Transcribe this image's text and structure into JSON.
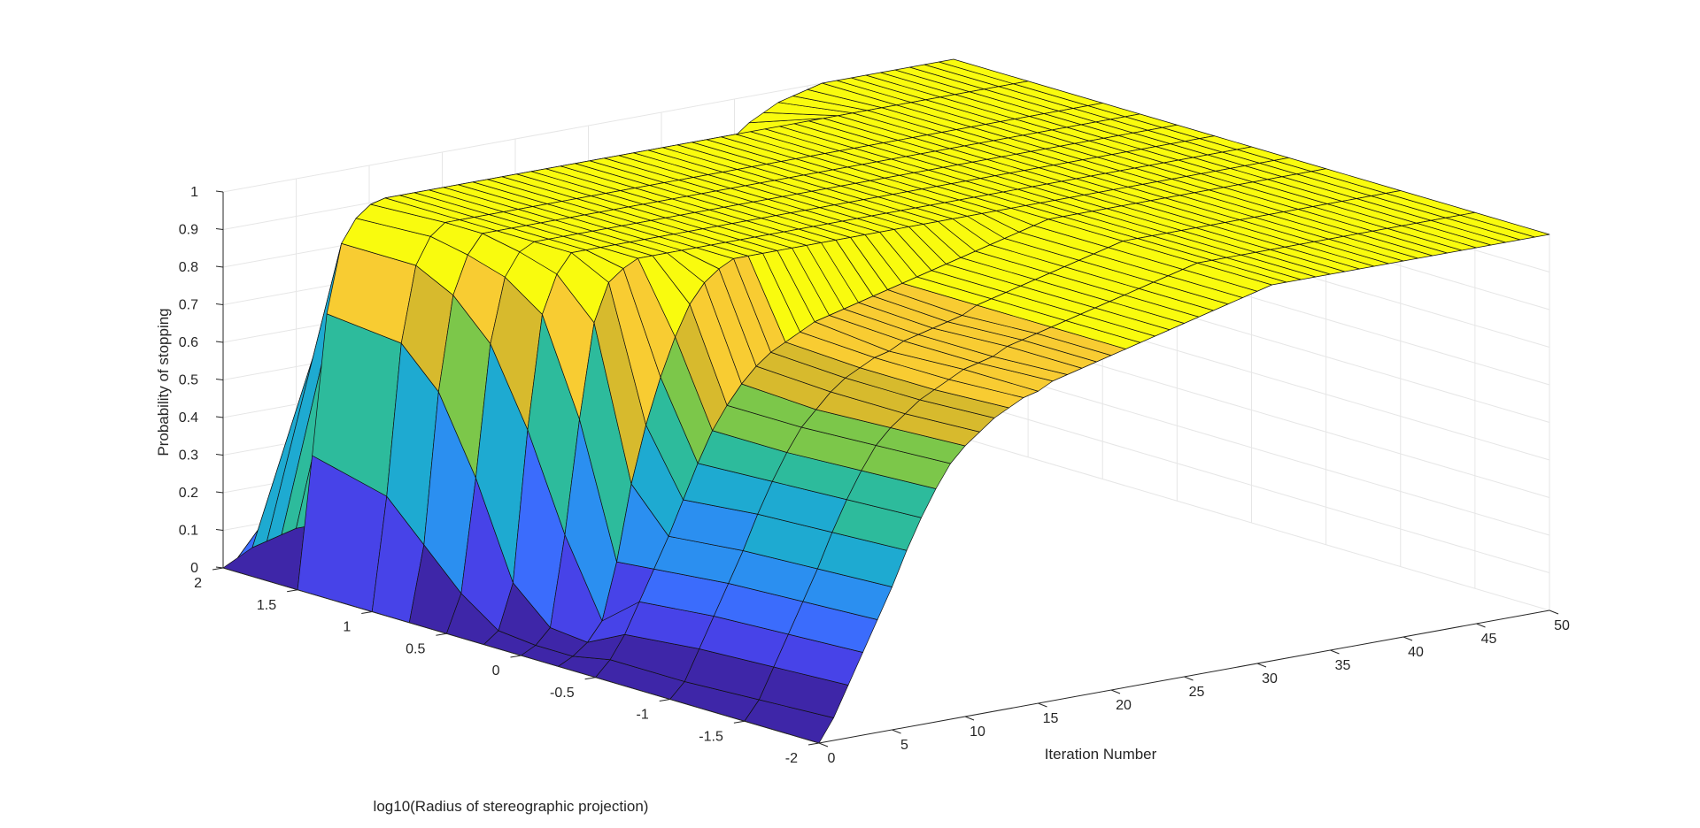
{
  "chart_data": {
    "type": "surface",
    "title": "",
    "xlabel": "Iteration Number",
    "ylabel": "log10(Radius of stereographic projection)",
    "zlabel": "Probability of stopping",
    "xlim": [
      0,
      50
    ],
    "ylim": [
      -2,
      2
    ],
    "zlim": [
      0,
      1
    ],
    "x_ticks": [
      "0",
      "5",
      "10",
      "15",
      "20",
      "25",
      "30",
      "35",
      "40",
      "45",
      "50"
    ],
    "y_ticks": [
      "-2",
      "-1.5",
      "-1",
      "-0.5",
      "0",
      "0.5",
      "1",
      "1.5",
      "2"
    ],
    "z_ticks": [
      "0",
      "0.1",
      "0.2",
      "0.3",
      "0.4",
      "0.5",
      "0.6",
      "0.7",
      "0.8",
      "0.9",
      "1"
    ],
    "grid": true,
    "colormap": "parula",
    "colors": [
      "#3e26a8",
      "#4743e8",
      "#3b6cfc",
      "#2b8ff0",
      "#1eaad1",
      "#2dbb9c",
      "#7cc74a",
      "#d7ba2d",
      "#f8cc32",
      "#f9fb0e"
    ],
    "y_grid": [
      -2,
      -1.5,
      -1,
      -0.5,
      -0.25,
      0,
      0.25,
      0.5,
      0.75,
      1,
      1.5,
      2
    ],
    "x_grid": [
      0,
      1,
      2,
      3,
      4,
      5,
      6,
      7,
      8,
      9,
      10,
      11,
      12,
      13,
      14,
      15,
      16,
      17,
      18,
      19,
      20,
      21,
      22,
      23,
      24,
      25,
      26,
      27,
      28,
      29,
      30,
      31,
      32,
      33,
      34,
      35,
      36,
      37,
      38,
      39,
      40,
      41,
      42,
      43,
      44,
      45,
      46,
      47,
      48,
      49,
      50
    ],
    "z_values_rows_by_y": [
      [
        0,
        0.06,
        0.14,
        0.22,
        0.3,
        0.38,
        0.47,
        0.55,
        0.62,
        0.68,
        0.72,
        0.75,
        0.78,
        0.8,
        0.82,
        0.83,
        0.85,
        0.86,
        0.87,
        0.88,
        0.89,
        0.9,
        0.91,
        0.92,
        0.93,
        0.94,
        0.95,
        0.96,
        0.97,
        0.98,
        0.99,
        1,
        1,
        1,
        1,
        1,
        1,
        1,
        1,
        1,
        1,
        1,
        1,
        1,
        1,
        1,
        1,
        1,
        1,
        1,
        1
      ],
      [
        0,
        0.05,
        0.13,
        0.21,
        0.29,
        0.37,
        0.46,
        0.54,
        0.61,
        0.67,
        0.71,
        0.74,
        0.77,
        0.79,
        0.81,
        0.83,
        0.84,
        0.85,
        0.87,
        0.88,
        0.89,
        0.9,
        0.91,
        0.92,
        0.93,
        0.94,
        0.95,
        0.96,
        0.97,
        0.98,
        0.99,
        1,
        1,
        1,
        1,
        1,
        1,
        1,
        1,
        1,
        1,
        1,
        1,
        1,
        1,
        1,
        1,
        1,
        1,
        1,
        1
      ],
      [
        0,
        0.04,
        0.12,
        0.2,
        0.28,
        0.36,
        0.45,
        0.53,
        0.6,
        0.66,
        0.7,
        0.74,
        0.77,
        0.79,
        0.81,
        0.82,
        0.84,
        0.85,
        0.86,
        0.87,
        0.88,
        0.9,
        0.91,
        0.92,
        0.93,
        0.94,
        0.95,
        0.96,
        0.97,
        0.98,
        0.99,
        1,
        1,
        1,
        1,
        1,
        1,
        1,
        1,
        1,
        1,
        1,
        1,
        1,
        1,
        1,
        1,
        1,
        1,
        1,
        1
      ],
      [
        0,
        0.04,
        0.1,
        0.18,
        0.26,
        0.34,
        0.43,
        0.52,
        0.6,
        0.66,
        0.71,
        0.75,
        0.78,
        0.8,
        0.82,
        0.84,
        0.85,
        0.86,
        0.87,
        0.88,
        0.89,
        0.9,
        0.91,
        0.92,
        0.93,
        0.94,
        0.95,
        0.96,
        0.97,
        0.98,
        0.99,
        1,
        1,
        1,
        1,
        1,
        1,
        1,
        1,
        1,
        1,
        1,
        1,
        1,
        1,
        1,
        1,
        1,
        1,
        1,
        1
      ],
      [
        0,
        0.02,
        0.05,
        0.1,
        0.25,
        0.45,
        0.6,
        0.72,
        0.82,
        0.9,
        0.95,
        0.98,
        1,
        1,
        1,
        1,
        1,
        1,
        1,
        1,
        1,
        1,
        1,
        1,
        1,
        1,
        1,
        1,
        1,
        1,
        1,
        1,
        1,
        1,
        1,
        1,
        1,
        1,
        1,
        1,
        1,
        1,
        1,
        1,
        1,
        1,
        1,
        1,
        1,
        1,
        1
      ],
      [
        0,
        0.02,
        0.06,
        0.3,
        0.6,
        0.85,
        0.95,
        0.98,
        1,
        1,
        1,
        1,
        1,
        1,
        1,
        1,
        1,
        1,
        1,
        1,
        1,
        1,
        1,
        1,
        1,
        1,
        1,
        1,
        1,
        1,
        1,
        1,
        1,
        1,
        1,
        1,
        1,
        1,
        1,
        1,
        1,
        1,
        1,
        1,
        1,
        1,
        1,
        1,
        1,
        1,
        1
      ],
      [
        0,
        0.03,
        0.15,
        0.55,
        0.85,
        0.95,
        1,
        1,
        1,
        1,
        1,
        1,
        1,
        1,
        1,
        1,
        1,
        1,
        1,
        1,
        1,
        1,
        1,
        1,
        1,
        1,
        1,
        1,
        1,
        1,
        1,
        1,
        1,
        1,
        1,
        1,
        1,
        1,
        1,
        1,
        1,
        1,
        1,
        1,
        1,
        1,
        1,
        1,
        1,
        1,
        1
      ],
      [
        0,
        0.1,
        0.4,
        0.75,
        0.92,
        0.98,
        1,
        1,
        1,
        1,
        1,
        1,
        1,
        1,
        1,
        1,
        1,
        1,
        1,
        1,
        1,
        1,
        1,
        1,
        1,
        1,
        1,
        1,
        1,
        1,
        1,
        1,
        1,
        1,
        1,
        1,
        1,
        1,
        1,
        1,
        1,
        1,
        1,
        1,
        1,
        1,
        1,
        1,
        1,
        1,
        1
      ],
      [
        0,
        0.2,
        0.6,
        0.85,
        0.95,
        1,
        1,
        1,
        1,
        1,
        1,
        1,
        1,
        1,
        1,
        1,
        1,
        1,
        1,
        1,
        1,
        1,
        1,
        1,
        1,
        1,
        1,
        1,
        1,
        1,
        1,
        1,
        1,
        1,
        1,
        1,
        1,
        1,
        1,
        1,
        1,
        1,
        1,
        1,
        1,
        1,
        1,
        1,
        1,
        1,
        1
      ],
      [
        0,
        0.3,
        0.7,
        0.9,
        0.97,
        1,
        1,
        1,
        1,
        1,
        1,
        1,
        1,
        1,
        1,
        1,
        1,
        1,
        1,
        1,
        1,
        1,
        1,
        1,
        1,
        1,
        1,
        1,
        1,
        1,
        1,
        1,
        1,
        1,
        1,
        1,
        1,
        1,
        1,
        1,
        1,
        1,
        1,
        1,
        1,
        1,
        1,
        1,
        1,
        1,
        1
      ],
      [
        0,
        0.35,
        0.72,
        0.9,
        0.96,
        0.99,
        1,
        1,
        1,
        1,
        1,
        1,
        1,
        1,
        1,
        1,
        1,
        1,
        1,
        1,
        1,
        1,
        1,
        1,
        1,
        1,
        1,
        1,
        1,
        1,
        1,
        1,
        1,
        1,
        1,
        1,
        1,
        1,
        1,
        1,
        1,
        1,
        1,
        1,
        1,
        1,
        1,
        1,
        1,
        1,
        1
      ],
      [
        0,
        0.02,
        0.04,
        0.05,
        0.06,
        0.07,
        0.07,
        0.08,
        0.08,
        0.09,
        0.09,
        0.1,
        0.1,
        0.11,
        0.11,
        0.12,
        0.12,
        0.13,
        0.13,
        0.14,
        0.14,
        0.15,
        0.16,
        0.17,
        0.18,
        0.2,
        0.22,
        0.25,
        0.3,
        0.38,
        0.5,
        0.62,
        0.72,
        0.8,
        0.86,
        0.9,
        0.93,
        0.95,
        0.97,
        0.98,
        0.99,
        1,
        1,
        1,
        1,
        1,
        1,
        1,
        1,
        1,
        1
      ]
    ]
  }
}
